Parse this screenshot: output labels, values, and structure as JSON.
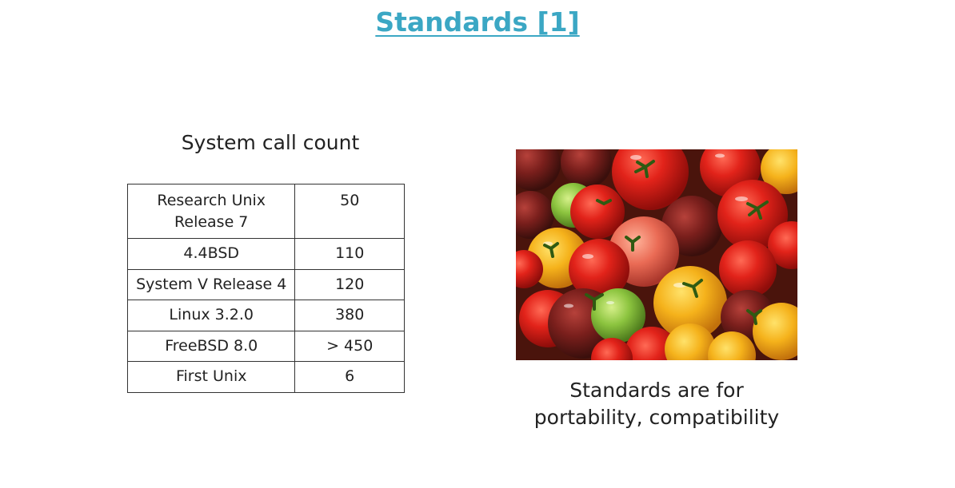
{
  "slide": {
    "title": "Standards [1]"
  },
  "table": {
    "caption": "System call count",
    "rows": [
      {
        "system_line1": "Research Unix",
        "system_line2": "Release 7",
        "count": "50"
      },
      {
        "system": "4.4BSD",
        "count": "110"
      },
      {
        "system": "System V Release 4",
        "count": "120"
      },
      {
        "system": "Linux 3.2.0",
        "count": "380"
      },
      {
        "system": "FreeBSD 8.0",
        "count": "> 450"
      },
      {
        "system": "First Unix",
        "count": "6"
      }
    ]
  },
  "photo": {
    "subject": "heirloom tomatoes",
    "caption_line1": "Standards are for",
    "caption_line2": "portability, compatibility"
  },
  "colors": {
    "title_link": "#3ba7c4",
    "text": "#222222",
    "table_border": "#333333"
  }
}
